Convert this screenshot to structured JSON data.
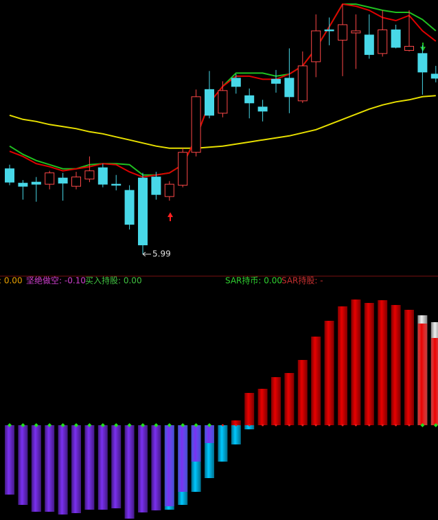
{
  "chart_data": [
    {
      "type": "candlestick",
      "open": [
        6.82,
        6.68,
        6.69,
        6.67,
        6.73,
        6.65,
        6.72,
        6.83,
        6.67,
        6.61,
        6.73,
        6.74,
        6.55,
        6.66,
        6.98,
        7.59,
        7.36,
        7.7,
        7.53,
        7.42,
        7.69,
        7.7,
        7.48,
        7.86,
        8.17,
        8.07,
        8.14,
        8.12,
        7.94,
        8.17,
        7.97,
        7.94,
        7.74
      ],
      "close": [
        6.69,
        6.65,
        6.67,
        6.78,
        6.68,
        6.74,
        6.8,
        6.67,
        6.66,
        6.28,
        6.08,
        6.57,
        6.67,
        6.98,
        7.52,
        7.34,
        7.58,
        7.62,
        7.46,
        7.38,
        7.65,
        7.52,
        7.82,
        8.16,
        8.16,
        8.22,
        8.16,
        7.93,
        8.17,
        8.0,
        8.01,
        7.76,
        7.7
      ],
      "high": [
        6.86,
        6.71,
        6.74,
        6.8,
        6.78,
        6.79,
        6.94,
        6.87,
        6.76,
        6.66,
        6.78,
        6.79,
        6.7,
        7.02,
        7.59,
        7.77,
        7.67,
        7.74,
        7.6,
        7.49,
        7.78,
        7.99,
        7.96,
        8.32,
        8.29,
        8.42,
        8.32,
        8.32,
        8.36,
        8.22,
        8.36,
        8.02,
        7.82
      ],
      "low": [
        6.66,
        6.52,
        6.5,
        6.62,
        6.51,
        6.62,
        6.69,
        6.64,
        6.61,
        6.23,
        5.99,
        6.52,
        6.51,
        6.64,
        6.94,
        7.31,
        7.32,
        7.55,
        7.31,
        7.28,
        7.56,
        7.36,
        7.46,
        7.71,
        8.02,
        7.72,
        7.79,
        7.89,
        7.91,
        7.99,
        7.96,
        7.54,
        7.66
      ],
      "up_color": "#ff4848",
      "down_color": "#48d8e8",
      "series": [
        {
          "color": "#e8e000",
          "values": [
            7.34,
            7.3,
            7.28,
            7.25,
            7.23,
            7.21,
            7.18,
            7.16,
            7.13,
            7.1,
            7.07,
            7.04,
            7.02,
            7.02,
            7.02,
            7.03,
            7.04,
            7.06,
            7.08,
            7.1,
            7.12,
            7.14,
            7.17,
            7.2,
            7.25,
            7.3,
            7.35,
            7.4,
            7.44,
            7.47,
            7.49,
            7.52,
            7.53
          ]
        },
        {
          "color": "#20c020",
          "values": [
            7.04,
            6.96,
            6.9,
            6.86,
            6.82,
            6.82,
            6.86,
            6.87,
            6.87,
            6.86,
            6.76,
            6.76,
            6.78,
            6.86,
            7.12,
            7.46,
            7.62,
            7.75,
            7.75,
            7.75,
            7.72,
            7.74,
            7.82,
            7.99,
            8.2,
            8.42,
            8.42,
            8.39,
            8.36,
            8.34,
            8.34,
            8.27,
            8.16
          ]
        },
        {
          "color": "#e00000",
          "values": [
            6.99,
            6.94,
            6.87,
            6.84,
            6.8,
            6.82,
            6.84,
            6.87,
            6.86,
            6.79,
            6.74,
            6.76,
            6.78,
            6.86,
            7.12,
            7.46,
            7.62,
            7.72,
            7.72,
            7.69,
            7.69,
            7.74,
            7.82,
            7.99,
            8.2,
            8.42,
            8.4,
            8.36,
            8.29,
            8.26,
            8.31,
            8.16,
            8.06
          ]
        }
      ],
      "annotations": [
        {
          "text": "5.99",
          "value": 5.99
        }
      ],
      "ylim": [
        5.79,
        8.46
      ]
    },
    {
      "type": "bar",
      "legend": [
        {
          "text": ": 0.00",
          "color": "#e8a000"
        },
        {
          "text": "坚绝做空: -0.10",
          "color": "#d040d0"
        },
        {
          "text": "买入持股: 0.00",
          "color": "#40c040"
        },
        {
          "text": "SAR持币: 0.00",
          "color": "#30d030"
        },
        {
          "text": "SAR持股: -",
          "color": "#c83030"
        }
      ],
      "series": [
        {
          "color": "#00c8ff",
          "values": [
            null,
            null,
            null,
            null,
            null,
            null,
            null,
            null,
            null,
            null,
            null,
            null,
            -12.3,
            -11.6,
            -9.7,
            -7.7,
            -5.3,
            -2.8,
            -0.6,
            null,
            null,
            null,
            null,
            null,
            null,
            null,
            null,
            null,
            null,
            null,
            null,
            null,
            null
          ]
        },
        {
          "color": "#7a30f0",
          "values": [
            -10.1,
            -11.6,
            -12.6,
            -12.6,
            -13.0,
            -12.8,
            -12.3,
            -12.3,
            -12.1,
            -13.6,
            -12.7,
            -12.4,
            -11.8,
            -9.7,
            -5.3,
            -2.6,
            null,
            null,
            null,
            null,
            null,
            null,
            null,
            null,
            null,
            null,
            null,
            null,
            null,
            null,
            null,
            null,
            null
          ]
        },
        {
          "color": "#f0f0f0",
          "values": [
            null,
            null,
            null,
            null,
            null,
            null,
            null,
            null,
            null,
            null,
            null,
            null,
            null,
            null,
            null,
            null,
            null,
            null,
            null,
            null,
            null,
            null,
            null,
            null,
            null,
            null,
            null,
            null,
            null,
            null,
            null,
            16.0,
            15.0
          ]
        },
        {
          "color": "#e80000",
          "values": [
            null,
            null,
            null,
            null,
            null,
            null,
            null,
            null,
            null,
            null,
            null,
            null,
            null,
            null,
            null,
            null,
            null,
            0.7,
            4.7,
            5.3,
            7.0,
            7.6,
            9.5,
            12.9,
            15.2,
            17.3,
            18.3,
            17.8,
            18.2,
            17.5,
            16.8,
            14.8,
            12.7
          ]
        }
      ],
      "zero_marker_colors": [
        "#20e020",
        "#20e020",
        "#20e020",
        "#20e020",
        "#20e020",
        "#20e020",
        "#20e020",
        "#20e020",
        "#20e020",
        "#20e020",
        "#20e020",
        "#20e020",
        "#20e020",
        "#20e020",
        "#20e020",
        "#20e020",
        "#e02020",
        "#e02020",
        "#e02020",
        "#e02020",
        "#e02020",
        "#e02020",
        "#e02020",
        "#e02020",
        "#e02020",
        "#e02020",
        "#e02020",
        "#e02020",
        "#e02020",
        "#e02020",
        "#e02020",
        "#20e020",
        "#20e020"
      ],
      "ylim": [
        -13.8,
        20.4
      ]
    }
  ]
}
